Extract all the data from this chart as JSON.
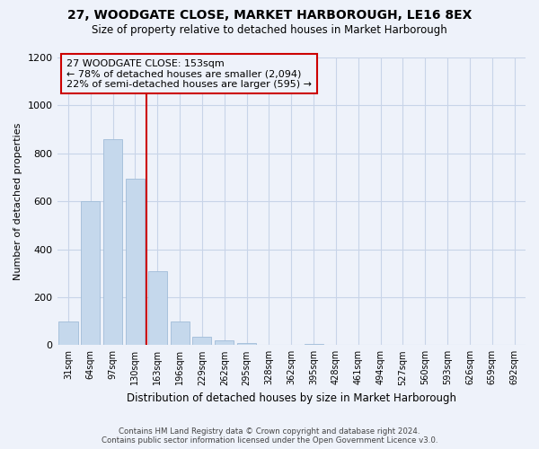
{
  "title": "27, WOODGATE CLOSE, MARKET HARBOROUGH, LE16 8EX",
  "subtitle": "Size of property relative to detached houses in Market Harborough",
  "xlabel": "Distribution of detached houses by size in Market Harborough",
  "ylabel": "Number of detached properties",
  "footer_line1": "Contains HM Land Registry data © Crown copyright and database right 2024.",
  "footer_line2": "Contains public sector information licensed under the Open Government Licence v3.0.",
  "bar_labels": [
    "31sqm",
    "64sqm",
    "97sqm",
    "130sqm",
    "163sqm",
    "196sqm",
    "229sqm",
    "262sqm",
    "295sqm",
    "328sqm",
    "362sqm",
    "395sqm",
    "428sqm",
    "461sqm",
    "494sqm",
    "527sqm",
    "560sqm",
    "593sqm",
    "626sqm",
    "659sqm",
    "692sqm"
  ],
  "bar_values": [
    100,
    600,
    860,
    695,
    310,
    100,
    35,
    20,
    10,
    0,
    0,
    5,
    0,
    0,
    0,
    0,
    0,
    0,
    0,
    0,
    0
  ],
  "bar_color": "#c5d8ec",
  "bar_edge_color": "#a0bcd8",
  "vline_color": "#cc0000",
  "vline_x": 3.5,
  "annotation_title": "27 WOODGATE CLOSE: 153sqm",
  "annotation_line1": "← 78% of detached houses are smaller (2,094)",
  "annotation_line2": "22% of semi-detached houses are larger (595) →",
  "annotation_box_edge": "#cc0000",
  "ylim": [
    0,
    1200
  ],
  "yticks": [
    0,
    200,
    400,
    600,
    800,
    1000,
    1200
  ],
  "background_color": "#eef2fa",
  "plot_bg_color": "#eef2fa",
  "grid_color": "#c8d4e8"
}
